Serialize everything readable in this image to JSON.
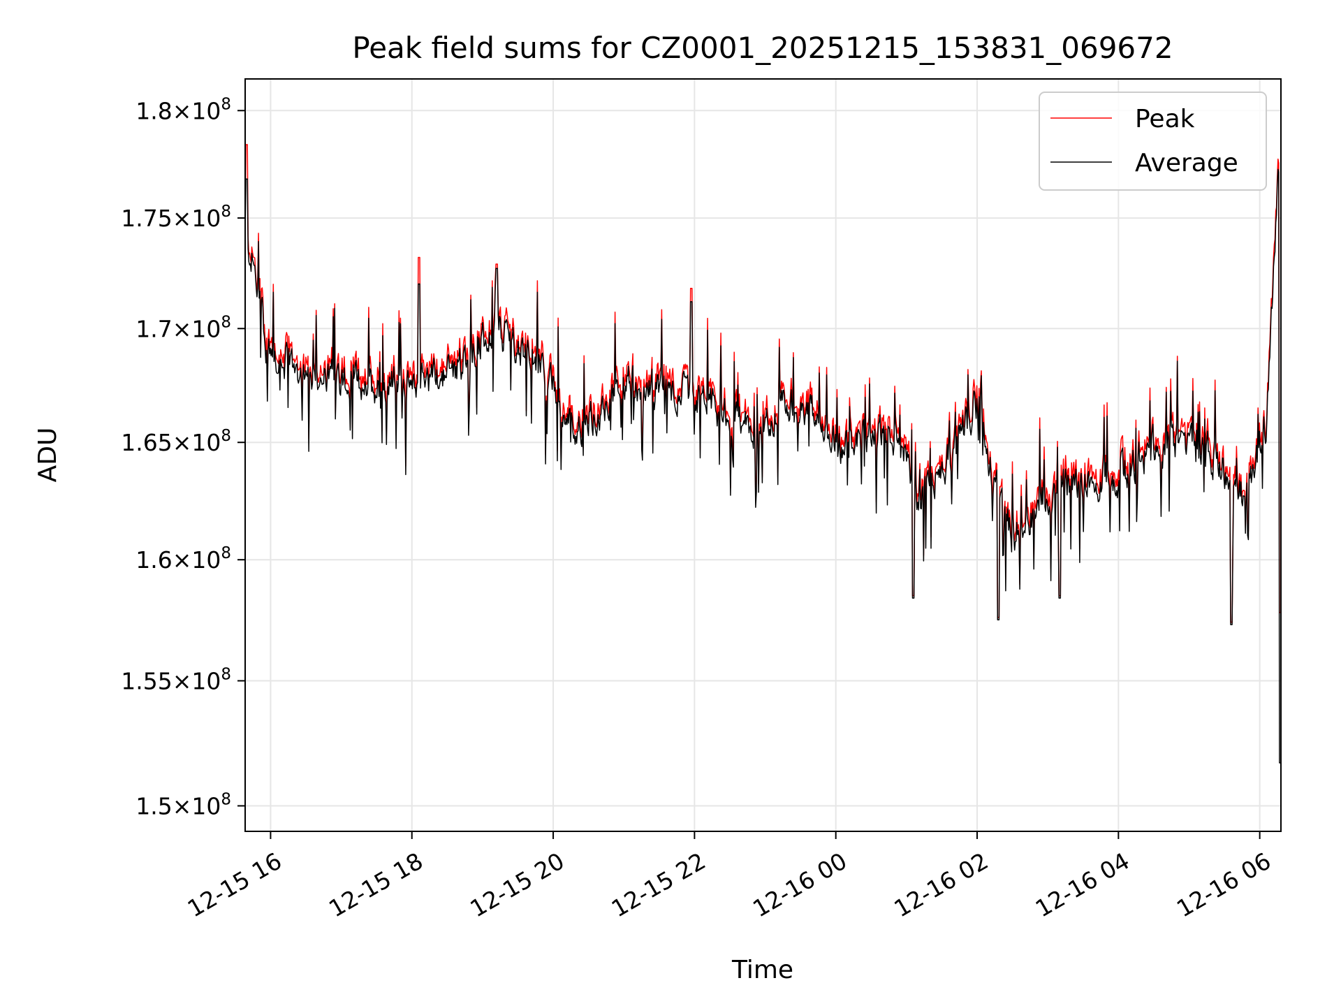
{
  "chart_data": {
    "type": "line",
    "title": "Peak field sums for CZ0001_20251215_153831_069672",
    "xlabel": "Time",
    "ylabel": "ADU",
    "grid": true,
    "legend_position": "top-right",
    "x_range_hours_from_2025_12_15_00": [
      15.64,
      30.3
    ],
    "xticks": [
      {
        "hour": 16,
        "label": "12-15 16"
      },
      {
        "hour": 18,
        "label": "12-15 18"
      },
      {
        "hour": 20,
        "label": "12-15 20"
      },
      {
        "hour": 22,
        "label": "12-15 22"
      },
      {
        "hour": 24,
        "label": "12-16 00"
      },
      {
        "hour": 26,
        "label": "12-16 02"
      },
      {
        "hour": 28,
        "label": "12-16 04"
      },
      {
        "hour": 30,
        "label": "12-16 06"
      }
    ],
    "ylim": [
      149000000,
      181500000
    ],
    "yscale": "log",
    "yticks": [
      {
        "value": 150000000,
        "mantissa": "1.5",
        "exponent": "8"
      },
      {
        "value": 155000000,
        "mantissa": "1.55",
        "exponent": "8"
      },
      {
        "value": 160000000,
        "mantissa": "1.6",
        "exponent": "8"
      },
      {
        "value": 165000000,
        "mantissa": "1.65",
        "exponent": "8"
      },
      {
        "value": 170000000,
        "mantissa": "1.7",
        "exponent": "8"
      },
      {
        "value": 175000000,
        "mantissa": "1.75",
        "exponent": "8"
      },
      {
        "value": 180000000,
        "mantissa": "1.8",
        "exponent": "8"
      }
    ],
    "ytick_multiplier": "×10",
    "series": [
      {
        "name": "Peak",
        "color": "#ff0000",
        "role": "peak"
      },
      {
        "name": "Average",
        "color": "#000000",
        "role": "average"
      }
    ],
    "profile_hours": [
      15.64,
      15.75,
      15.95,
      16.5,
      17.5,
      18.5,
      19.2,
      19.8,
      20.3,
      21.0,
      21.8,
      22.3,
      22.9,
      23.4,
      24.1,
      24.8,
      25.2,
      25.6,
      26.0,
      26.25,
      26.5,
      27.0,
      27.5,
      28.0,
      28.5,
      29.0,
      29.4,
      29.8,
      30.1,
      30.28,
      30.3
    ],
    "profile_values_e8": [
      1.74,
      1.73,
      1.69,
      1.68,
      1.675,
      1.68,
      1.7,
      1.685,
      1.655,
      1.675,
      1.672,
      1.665,
      1.652,
      1.67,
      1.648,
      1.655,
      1.625,
      1.645,
      1.668,
      1.63,
      1.61,
      1.628,
      1.635,
      1.635,
      1.648,
      1.652,
      1.642,
      1.625,
      1.66,
      1.78,
      1.54
    ],
    "spikes": [
      {
        "hour": 15.66,
        "peak_e8": 1.784,
        "avg_e8": 1.768
      },
      {
        "hour": 19.2,
        "peak_e8": 1.729,
        "avg_e8": 1.727
      },
      {
        "hour": 18.1,
        "peak_e8": 1.732,
        "avg_e8": 1.72
      },
      {
        "hour": 21.95,
        "peak_e8": 1.718,
        "avg_e8": 1.712
      },
      {
        "hour": 25.1,
        "peak_e8": 1.585,
        "avg_e8": 1.584
      },
      {
        "hour": 26.3,
        "peak_e8": 1.576,
        "avg_e8": 1.575
      },
      {
        "hour": 27.17,
        "peak_e8": 1.585,
        "avg_e8": 1.584
      },
      {
        "hour": 29.6,
        "peak_e8": 1.574,
        "avg_e8": 1.573
      },
      {
        "hour": 30.29,
        "peak_e8": 1.578,
        "avg_e8": 1.517
      }
    ],
    "noise_amplitude_e8": 0.018
  }
}
